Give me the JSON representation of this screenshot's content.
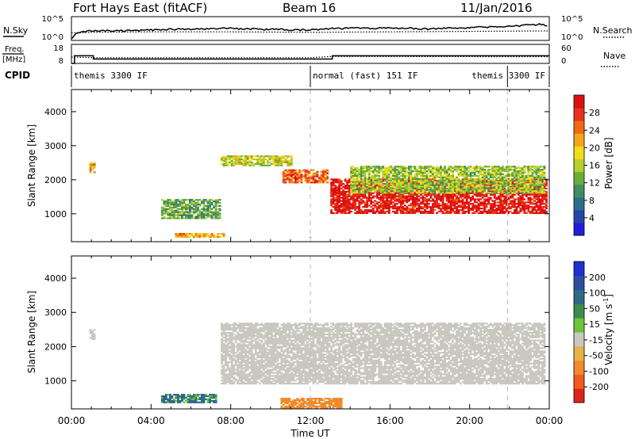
{
  "header": {
    "station": "Fort Hays East (fitACF)",
    "beam": "Beam 16",
    "date": "11/Jan/2016"
  },
  "noise_panel": {
    "left_label": "N.Sky",
    "right_label": "N.Search",
    "left_ticks": [
      "10^5",
      "10^0"
    ],
    "right_ticks": [
      "10^5",
      "10^0"
    ]
  },
  "freq_panel": {
    "left_label_top": "Freq.",
    "left_label_bottom": "[MHz]",
    "right_label": "Nave",
    "left_ticks": [
      "18",
      "8"
    ],
    "right_ticks": [
      "60",
      "0"
    ]
  },
  "cpid": {
    "label": "CPID",
    "segments": [
      {
        "start_hr": 0.0,
        "end_hr": 12.0,
        "name": "themis 3300 IF"
      },
      {
        "start_hr": 12.0,
        "end_hr": 21.9,
        "name": "normal (fast) 151 IF"
      },
      {
        "start_hr": 21.9,
        "end_hr": 24.0,
        "name": "themis 3300 IF"
      }
    ],
    "label_positions": [
      "left",
      "left",
      "right"
    ]
  },
  "time_axis": {
    "label": "Time UT",
    "ticks": [
      "00:00",
      "04:00",
      "08:00",
      "12:00",
      "16:00",
      "20:00",
      "00:00"
    ],
    "range_hr": [
      0,
      24
    ],
    "marker_hours": [
      12.0,
      21.9
    ]
  },
  "panels": {
    "power": {
      "ylabel": "Slant Range [km]",
      "yticks": [
        "1000",
        "2000",
        "3000",
        "4000"
      ],
      "yrange_km": [
        180,
        4650
      ],
      "colorbar_label": "Power [dB]",
      "colorbar_ticks": [
        "4",
        "8",
        "12",
        "16",
        "20",
        "24",
        "28"
      ]
    },
    "velocity": {
      "ylabel": "Slant Range [km]",
      "yticks": [
        "1000",
        "2000",
        "3000",
        "4000"
      ],
      "yrange_km": [
        180,
        4650
      ],
      "colorbar_label": "Velocity [m s-1]",
      "colorbar_unit_main": "Velocity [m s",
      "colorbar_unit_exp": "-1",
      "colorbar_unit_close": "]",
      "colorbar_ticks": [
        "200",
        "100",
        "50",
        "15",
        "-15",
        "-50",
        "-100",
        "-200"
      ]
    }
  },
  "colors": {
    "power_scale": [
      "#1f1fd8",
      "#2545a8",
      "#2f6e8a",
      "#3f8f63",
      "#6aae3a",
      "#b6cf2a",
      "#f2dd1a",
      "#f5a51a",
      "#f06a14",
      "#e8331a",
      "#dd1010"
    ],
    "velocity_scale": [
      "#1f2fd0",
      "#2c4fa0",
      "#2e6a88",
      "#3f8a50",
      "#6cc43a",
      "#c8c8c0",
      "#e8b24a",
      "#f08a2a",
      "#f05a20",
      "#e0221a"
    ],
    "ground_scatter_gray": "#c8c8c0"
  },
  "chart_data": {
    "type": "heatmap",
    "summary_series": [
      {
        "name": "N.Sky",
        "x_hr": [
          0,
          0.25,
          1,
          2,
          4,
          6,
          8,
          10,
          12,
          13,
          16,
          18,
          20,
          22,
          23.6,
          24
        ],
        "y_log10": [
          0.3,
          1.6,
          2.1,
          2.0,
          2.2,
          2.4,
          2.5,
          2.3,
          2.2,
          2.5,
          2.6,
          2.4,
          2.7,
          2.9,
          3.4,
          3.0
        ]
      },
      {
        "name": "N.Search",
        "x_hr": [
          0,
          1,
          4,
          8,
          12,
          16,
          20,
          24
        ],
        "y_log10": [
          1.6,
          1.7,
          1.8,
          1.8,
          1.7,
          1.8,
          1.9,
          2.0
        ]
      },
      {
        "name": "Freq.",
        "x_hr": [
          0,
          0.15,
          0.15,
          1.1,
          1.1,
          13.1,
          13.1,
          24
        ],
        "y_mhz": [
          8,
          8,
          12,
          12,
          10.3,
          10.3,
          12,
          12
        ]
      },
      {
        "name": "Nave",
        "x_hr": [
          0,
          1.1,
          12.0,
          13.1,
          24
        ],
        "y": [
          20,
          18,
          18,
          22,
          21
        ]
      }
    ],
    "power_dB_regions": [
      {
        "t_start": 0.9,
        "t_end": 1.15,
        "r_start_km": 2200,
        "r_end_km": 2500,
        "power_dB": 20
      },
      {
        "t_start": 4.5,
        "t_end": 7.4,
        "r_start_km": 850,
        "r_end_km": 1400,
        "power_dB": 12
      },
      {
        "t_start": 5.2,
        "t_end": 7.6,
        "r_start_km": 300,
        "r_end_km": 420,
        "power_dB": 20
      },
      {
        "t_start": 7.5,
        "t_end": 11.0,
        "r_start_km": 2400,
        "r_end_km": 2700,
        "power_dB": 16
      },
      {
        "t_start": 10.6,
        "t_end": 12.8,
        "r_start_km": 1900,
        "r_end_km": 2300,
        "power_dB": 24
      },
      {
        "t_start": 13.0,
        "t_end": 23.9,
        "r_start_km": 1000,
        "r_end_km": 2000,
        "power_dB": 28
      },
      {
        "t_start": 14.0,
        "t_end": 23.8,
        "r_start_km": 1600,
        "r_end_km": 2400,
        "power_dB": 14
      }
    ],
    "velocity_regions": [
      {
        "t_start": 0.9,
        "t_end": 1.15,
        "r_start_km": 2200,
        "r_end_km": 2500,
        "velocity_ms": 0
      },
      {
        "t_start": 4.5,
        "t_end": 7.2,
        "r_start_km": 350,
        "r_end_km": 600,
        "velocity_ms": 40
      },
      {
        "t_start": 7.5,
        "t_end": 23.8,
        "r_start_km": 900,
        "r_end_km": 2700,
        "velocity_ms": 0
      },
      {
        "t_start": 10.5,
        "t_end": 13.5,
        "r_start_km": 190,
        "r_end_km": 500,
        "velocity_ms": -50
      }
    ]
  }
}
